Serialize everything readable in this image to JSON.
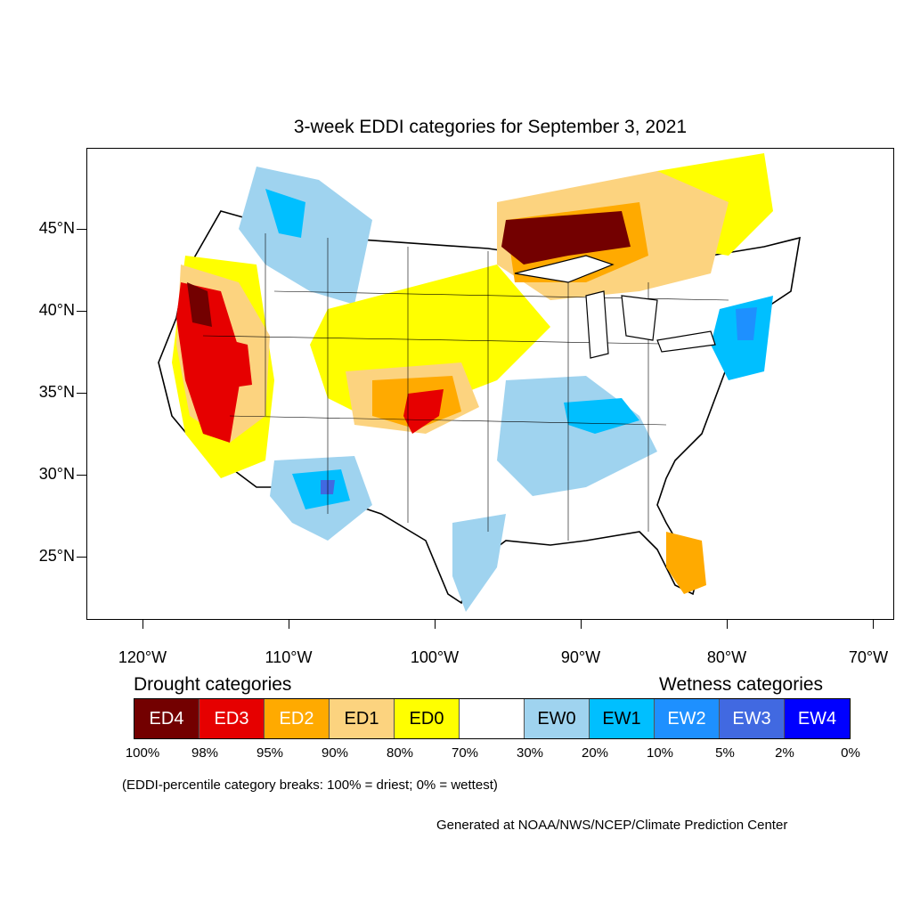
{
  "title": "3-week EDDI categories for September 3, 2021",
  "map": {
    "lat_labels": [
      "45°N",
      "40°N",
      "35°N",
      "30°N",
      "25°N"
    ],
    "lon_labels": [
      "120°W",
      "110°W",
      "100°W",
      "90°W",
      "80°W",
      "70°W"
    ],
    "ocean_color": "#ffffff",
    "boundary_color": "#000000"
  },
  "legend": {
    "drought_title": "Drought categories",
    "wetness_title": "Wetness categories",
    "categories": [
      {
        "label": "ED4",
        "color": "#730000",
        "text_color": "#ffffff"
      },
      {
        "label": "ED3",
        "color": "#e60000",
        "text_color": "#ffffff"
      },
      {
        "label": "ED2",
        "color": "#ffaa00",
        "text_color": "#ffffff"
      },
      {
        "label": "ED1",
        "color": "#fcd37f",
        "text_color": "#000000"
      },
      {
        "label": "ED0",
        "color": "#ffff00",
        "text_color": "#000000"
      },
      {
        "label": "",
        "color": "#ffffff",
        "text_color": "#000000"
      },
      {
        "label": "EW0",
        "color": "#9fd3ef",
        "text_color": "#000000"
      },
      {
        "label": "EW1",
        "color": "#00bfff",
        "text_color": "#000000"
      },
      {
        "label": "EW2",
        "color": "#1e90ff",
        "text_color": "#ffffff"
      },
      {
        "label": "EW3",
        "color": "#4169e1",
        "text_color": "#ffffff"
      },
      {
        "label": "EW4",
        "color": "#0000ff",
        "text_color": "#ffffff"
      }
    ],
    "percentiles": [
      "100%",
      "98%",
      "95%",
      "90%",
      "80%",
      "70%",
      "30%",
      "20%",
      "10%",
      "5%",
      "2%",
      "0%"
    ],
    "note": "(EDDI-percentile category breaks: 100% = driest; 0% = wettest)"
  },
  "credit": "Generated at NOAA/NWS/NCEP/Climate Prediction Center"
}
